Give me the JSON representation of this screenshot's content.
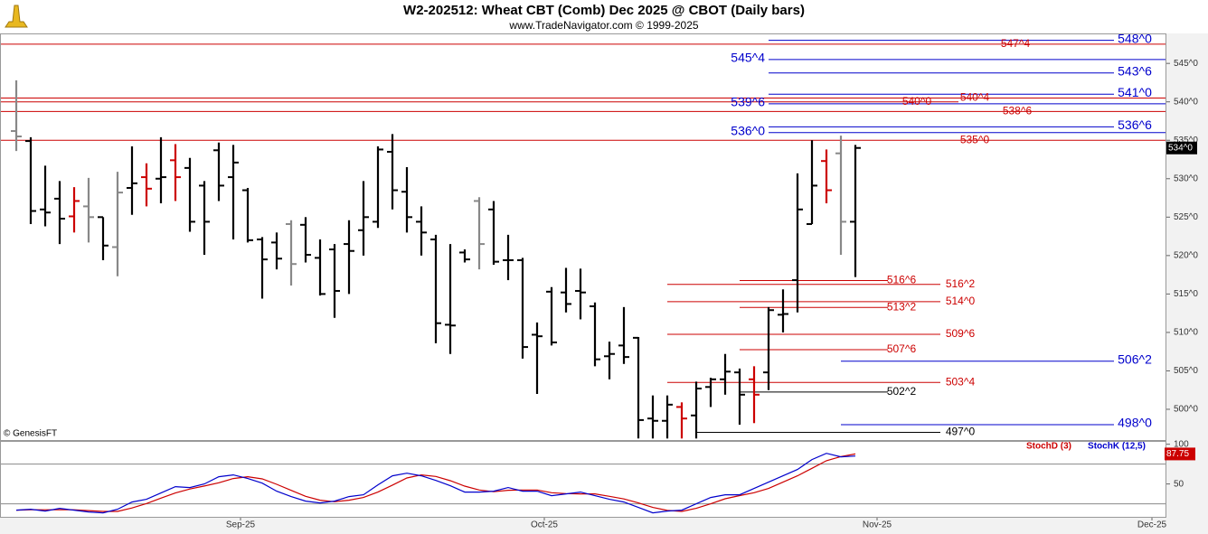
{
  "header": {
    "title": "W2-202512:  Wheat CBT (Comb) Dec 2025 @ CBOT  (Daily bars)",
    "subtitle": "www.TradeNavigator.com © 1999-2025",
    "watermark": "© GenesisFT"
  },
  "chart_data": [
    {
      "type": "ohlc",
      "xlim": [
        -1.125,
        79.5
      ],
      "ylim": [
        496,
        548.9
      ],
      "yticks": [
        {
          "value": 500,
          "label": "500^0"
        },
        {
          "value": 505,
          "label": "505^0"
        },
        {
          "value": 510,
          "label": "510^0"
        },
        {
          "value": 515,
          "label": "515^0"
        },
        {
          "value": 520,
          "label": "520^0"
        },
        {
          "value": 525,
          "label": "525^0"
        },
        {
          "value": 530,
          "label": "530^0"
        },
        {
          "value": 535,
          "label": "535^0"
        },
        {
          "value": 540,
          "label": "540^0"
        },
        {
          "value": 545,
          "label": "545^0"
        }
      ],
      "open": [
        536.2,
        534.9,
        526.0,
        527.4,
        525.1,
        526.4,
        525.0,
        521.1,
        528.8,
        530.2,
        530.0,
        532.4,
        531.4,
        529.1,
        533.7,
        530.2,
        528.5,
        522.1,
        521.7,
        524.1,
        524.0,
        519.7,
        520.8,
        521.5,
        523.3,
        524.4,
        533.5,
        528.3,
        524.4,
        522.1,
        511.0,
        520.4,
        527.1,
        526.0,
        519.4,
        519.4,
        509.7,
        515.3,
        515.2,
        515.4,
        513.4,
        506.9,
        508.3,
        509.3,
        498.8,
        498.5,
        500.3,
        499.2,
        502.9,
        503.9,
        504.8,
        503.9,
        504.8,
        512.3,
        516.8,
        524.1,
        532.3,
        533.3,
        524.4
      ],
      "high": [
        542.8,
        535.4,
        531.7,
        529.7,
        528.9,
        530.1,
        525.0,
        530.9,
        534.2,
        532.0,
        535.4,
        534.5,
        532.7,
        529.7,
        534.7,
        534.4,
        528.8,
        522.4,
        523.0,
        524.6,
        525.0,
        522.1,
        521.5,
        524.6,
        529.7,
        534.2,
        535.8,
        531.5,
        526.4,
        522.7,
        521.5,
        520.8,
        527.6,
        527.1,
        522.7,
        519.7,
        511.3,
        515.9,
        518.4,
        518.3,
        513.9,
        508.8,
        513.3,
        509.4,
        501.8,
        501.8,
        500.9,
        503.6,
        504.1,
        507.2,
        505.3,
        505.6,
        513.3,
        515.6,
        530.7,
        535.0,
        533.8,
        535.6,
        534.4
      ],
      "low": [
        533.6,
        524.1,
        523.8,
        521.5,
        523.0,
        521.7,
        519.4,
        517.3,
        525.3,
        526.4,
        526.8,
        527.1,
        523.1,
        520.1,
        527.1,
        522.1,
        521.7,
        514.4,
        518.2,
        516.1,
        519.1,
        514.8,
        511.9,
        515.0,
        520.0,
        523.6,
        526.0,
        523.0,
        520.0,
        508.6,
        507.2,
        519.1,
        518.2,
        518.8,
        516.8,
        506.6,
        502.0,
        508.3,
        512.6,
        511.7,
        505.6,
        503.9,
        505.9,
        496.2,
        496.2,
        496.2,
        496.2,
        496.2,
        500.3,
        501.9,
        498.0,
        498.2,
        502.5,
        510.0,
        512.6,
        524.1,
        526.8,
        520.1,
        517.2
      ],
      "close": [
        535.5,
        525.8,
        525.6,
        524.8,
        527.1,
        525.0,
        521.3,
        528.2,
        529.4,
        528.7,
        530.2,
        530.2,
        524.4,
        524.4,
        529.1,
        532.1,
        522.0,
        519.5,
        519.6,
        518.9,
        520.1,
        515.0,
        515.4,
        520.6,
        525.0,
        533.8,
        528.5,
        525.0,
        523.0,
        511.2,
        510.9,
        519.5,
        521.5,
        519.2,
        519.4,
        508.1,
        509.5,
        508.7,
        513.7,
        515.2,
        506.5,
        507.2,
        506.8,
        498.6,
        498.5,
        500.6,
        498.8,
        502.7,
        503.9,
        504.9,
        501.9,
        501.9,
        512.9,
        512.4,
        526.0,
        529.1,
        528.5,
        524.4,
        534.0
      ],
      "colors": [
        "#888888",
        "#000000",
        "#000000",
        "#000000",
        "#cc0000",
        "#888888",
        "#000000",
        "#888888",
        "#000000",
        "#cc0000",
        "#000000",
        "#cc0000",
        "#000000",
        "#000000",
        "#000000",
        "#000000",
        "#000000",
        "#000000",
        "#000000",
        "#888888",
        "#000000",
        "#000000",
        "#000000",
        "#000000",
        "#000000",
        "#000000",
        "#000000",
        "#000000",
        "#000000",
        "#000000",
        "#000000",
        "#000000",
        "#888888",
        "#000000",
        "#000000",
        "#000000",
        "#000000",
        "#000000",
        "#000000",
        "#000000",
        "#000000",
        "#000000",
        "#000000",
        "#000000",
        "#000000",
        "#000000",
        "#cc0000",
        "#000000",
        "#000000",
        "#000000",
        "#000000",
        "#cc0000",
        "#000000",
        "#000000",
        "#000000",
        "#000000",
        "#cc0000",
        "#888888",
        "#000000"
      ],
      "last_close_label": "534^0",
      "levels": [
        {
          "value": 548,
          "label": "548^0",
          "color": "#0000cc"
        },
        {
          "value": 547.5,
          "label": "547^4",
          "color": "#cc0000"
        },
        {
          "value": 545.5,
          "label": "545^4",
          "color": "#0000cc"
        },
        {
          "value": 543.75,
          "label": "543^6",
          "color": "#0000cc"
        },
        {
          "value": 541,
          "label": "541^0",
          "color": "#0000cc"
        },
        {
          "value": 540.5,
          "label": "540^4",
          "color": "#cc0000"
        },
        {
          "value": 540,
          "label": "540^0",
          "color": "#cc0000"
        },
        {
          "value": 539.75,
          "label": "539^6",
          "color": "#0000cc"
        },
        {
          "value": 538.75,
          "label": "538^6",
          "color": "#cc0000"
        },
        {
          "value": 536.75,
          "label": "536^6",
          "color": "#0000cc"
        },
        {
          "value": 536,
          "label": "536^0",
          "color": "#0000cc"
        },
        {
          "value": 535,
          "label": "535^0",
          "color": "#cc0000"
        },
        {
          "value": 516.75,
          "label": "516^6",
          "color": "#cc0000"
        },
        {
          "value": 516.25,
          "label": "516^2",
          "color": "#cc0000"
        },
        {
          "value": 514,
          "label": "514^0",
          "color": "#cc0000"
        },
        {
          "value": 513.25,
          "label": "513^2",
          "color": "#cc0000"
        },
        {
          "value": 509.75,
          "label": "509^6",
          "color": "#cc0000"
        },
        {
          "value": 507.75,
          "label": "507^6",
          "color": "#cc0000"
        },
        {
          "value": 506.25,
          "label": "506^2",
          "color": "#0000cc"
        },
        {
          "value": 503.5,
          "label": "503^4",
          "color": "#cc0000"
        },
        {
          "value": 502.25,
          "label": "502^2",
          "color": "#000000"
        },
        {
          "value": 498,
          "label": "498^0",
          "color": "#0000cc"
        },
        {
          "value": 497,
          "label": "497^0",
          "color": "#000000"
        }
      ]
    },
    {
      "type": "line",
      "xlim": [
        -1.125,
        79.5
      ],
      "ylim": [
        7.5,
        103
      ],
      "yticks": [
        50,
        100
      ],
      "levels": [
        25,
        75
      ],
      "xticks": [
        {
          "value": 15.5,
          "label": "Sep-25"
        },
        {
          "value": 36.5,
          "label": "Oct-25"
        },
        {
          "value": 59.5,
          "label": "Nov-25"
        },
        {
          "value": 78.5,
          "label": "Dec-25"
        }
      ],
      "series": [
        {
          "name": "StochK (12,5)",
          "color": "#0000cc",
          "values": [
            17.0,
            18.2,
            15.9,
            19.3,
            17.0,
            14.8,
            13.6,
            18.2,
            27.3,
            30.7,
            38.6,
            46.6,
            45.5,
            50,
            59.1,
            61.4,
            56.8,
            51.1,
            40.9,
            34.1,
            28.4,
            26.1,
            28.4,
            34.1,
            36.4,
            48.9,
            60.2,
            63.6,
            60.2,
            54.5,
            47.7,
            39.8,
            39.8,
            40.9,
            45.5,
            40.9,
            40.9,
            35.2,
            37.5,
            39.8,
            35.2,
            30.7,
            27.3,
            20.5,
            13.6,
            15.9,
            17.0,
            25,
            33,
            36.4,
            36.4,
            44.3,
            52.3,
            60.2,
            68.2,
            80.7,
            88.6,
            84.1,
            85.2
          ]
        },
        {
          "name": "StochD (3)",
          "color": "#cc0000",
          "values": [
            17,
            17.5,
            17.5,
            17.5,
            17.5,
            16.5,
            15.5,
            15.5,
            19.8,
            25.4,
            32.2,
            38.6,
            43.6,
            47.4,
            51.5,
            56.8,
            59.1,
            56.4,
            49.6,
            42.0,
            34.5,
            29.5,
            27.6,
            29.5,
            33.0,
            39.8,
            48.5,
            57.5,
            61.4,
            59.4,
            54.1,
            47.3,
            42.4,
            40.2,
            42.1,
            42.4,
            42.4,
            39.0,
            37.9,
            37.5,
            37.5,
            34.5,
            31.1,
            26.1,
            20.5,
            16.7,
            15.5,
            19.3,
            25.0,
            31.4,
            35.3,
            39.0,
            44.3,
            52.3,
            60.2,
            69.7,
            79.2,
            84.5,
            87.75
          ]
        }
      ]
    }
  ]
}
